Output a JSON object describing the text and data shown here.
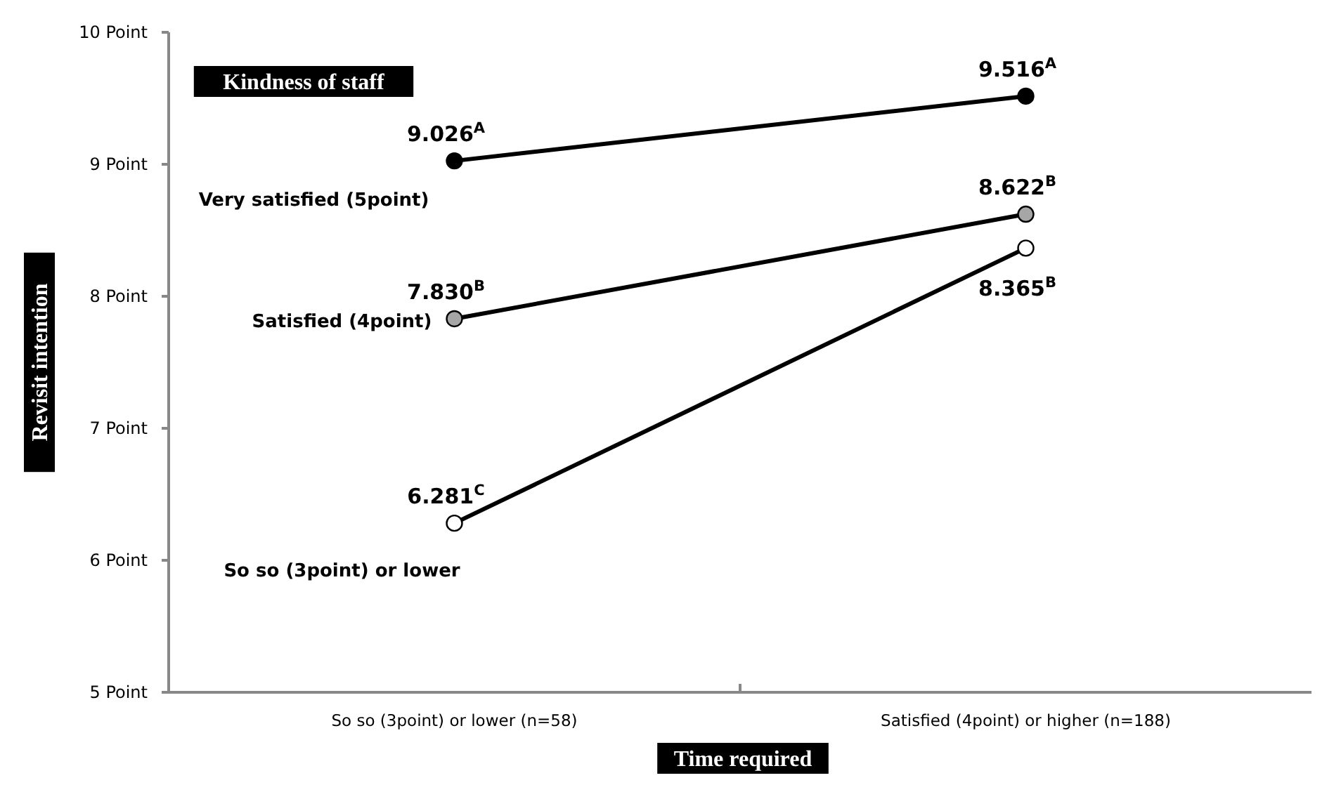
{
  "chart_data": {
    "type": "line",
    "legend_title": "Kindness of staff",
    "xlabel": "Time required",
    "ylabel": "Revisit intention",
    "categories": [
      "So so (3point) or lower (n=58)",
      "Satisfied (4point) or higher (n=188)"
    ],
    "ylim": [
      5,
      10
    ],
    "yticks": [
      {
        "value": 5,
        "label": "5 Point"
      },
      {
        "value": 6,
        "label": "6 Point"
      },
      {
        "value": 7,
        "label": "7 Point"
      },
      {
        "value": 8,
        "label": "8 Point"
      },
      {
        "value": 9,
        "label": "9 Point"
      },
      {
        "value": 10,
        "label": "10 Point"
      }
    ],
    "marker": "circle",
    "line_style": "solid",
    "series": [
      {
        "name": "Very satisfied (5point)",
        "color": "#000000",
        "values": [
          9.026,
          9.516
        ],
        "value_labels": [
          "9.026$^{A}$",
          "9.516$^{A}$"
        ]
      },
      {
        "name": "Satisfied (4point)",
        "color": "#a6a6a6",
        "values": [
          7.83,
          8.622
        ],
        "value_labels": [
          "7.830$^{B}$",
          "8.622$^{B}$"
        ]
      },
      {
        "name": "So so (3point) or lower",
        "color": "#ffffff",
        "values": [
          6.281,
          8.365
        ],
        "value_labels": [
          "6.281$^{C}$",
          "8.365$^{B}$"
        ]
      }
    ]
  }
}
